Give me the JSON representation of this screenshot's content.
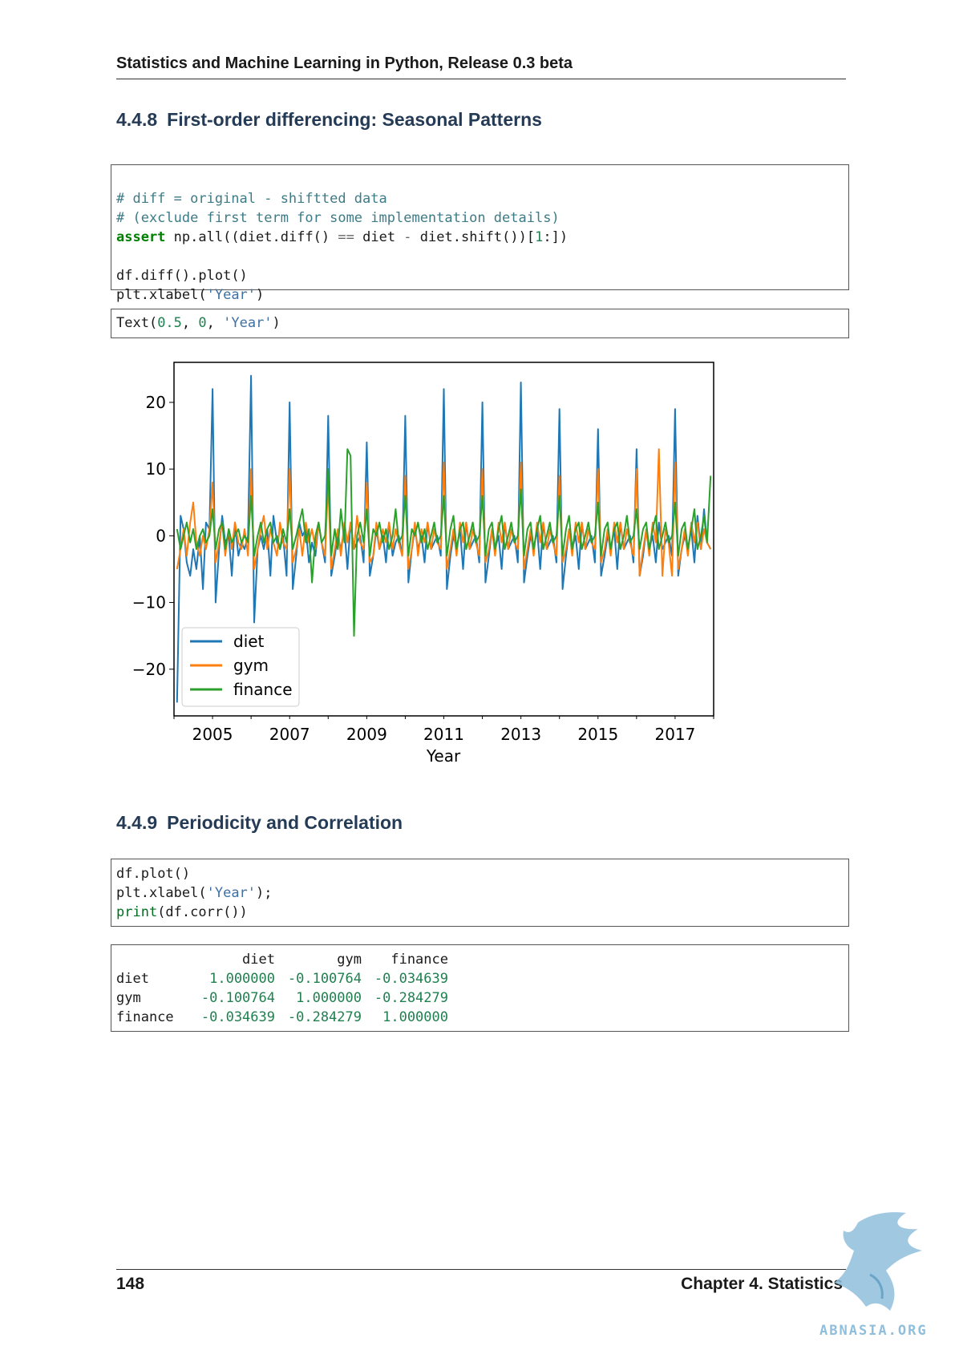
{
  "header": {
    "title": "Statistics and Machine Learning in Python, Release 0.3 beta"
  },
  "section1": {
    "number": "4.4.8",
    "title": "First-order differencing: Seasonal Patterns",
    "code": {
      "l1": "# diff = original - shiftted data",
      "l2": "# (exclude first term for some implementation details)",
      "l3_kw": "assert",
      "l3_a": " np",
      "l3_b": ".all((diet",
      "l3_c": ".diff() ",
      "l3_d": "==",
      "l3_e": " diet ",
      "l3_f": "-",
      "l3_g": " diet",
      "l3_h": ".shift())[",
      "l3_i": "1",
      "l3_j": ":])",
      "l5_a": "df",
      "l5_b": ".diff()",
      "l5_c": ".plot()",
      "l6_a": "plt",
      "l6_b": ".xlabel(",
      "l6_c": "'Year'",
      "l6_d": ")"
    },
    "output": {
      "a": "Text(",
      "b": "0.5",
      "c": ", ",
      "d": "0",
      "e": ", ",
      "f": "'Year'",
      "g": ")"
    }
  },
  "chart_data": {
    "type": "line",
    "title": "",
    "xlabel": "Year",
    "ylabel": "",
    "xlim": [
      2004.0,
      2018.0
    ],
    "ylim": [
      -27,
      26
    ],
    "yticks": [
      20,
      10,
      0,
      -10,
      -20
    ],
    "ytick_labels": [
      "20",
      "10",
      "0",
      "−10",
      "−20"
    ],
    "xticks": [
      2005,
      2007,
      2009,
      2011,
      2013,
      2015,
      2017
    ],
    "xtick_labels": [
      "2005",
      "2007",
      "2009",
      "2011",
      "2013",
      "2015",
      "2017"
    ],
    "legend_position": "lower-left",
    "grid": false,
    "series": [
      {
        "name": "diet",
        "color": "#1f77b4",
        "x": [
          2004.08,
          2004.17,
          2004.25,
          2004.33,
          2004.42,
          2004.5,
          2004.58,
          2004.67,
          2004.75,
          2004.83,
          2004.92,
          2005.0,
          2005.08,
          2005.17,
          2005.25,
          2005.33,
          2005.42,
          2005.5,
          2005.58,
          2005.67,
          2005.75,
          2005.83,
          2005.92,
          2006.0,
          2006.08,
          2006.17,
          2006.25,
          2006.33,
          2006.42,
          2006.5,
          2006.58,
          2006.67,
          2006.75,
          2006.83,
          2006.92,
          2007.0,
          2007.08,
          2007.17,
          2007.25,
          2007.33,
          2007.42,
          2007.5,
          2007.58,
          2007.67,
          2007.75,
          2007.83,
          2007.92,
          2008.0,
          2008.08,
          2008.17,
          2008.25,
          2008.33,
          2008.42,
          2008.5,
          2008.58,
          2008.67,
          2008.75,
          2008.83,
          2008.92,
          2009.0,
          2009.08,
          2009.17,
          2009.25,
          2009.33,
          2009.42,
          2009.5,
          2009.58,
          2009.67,
          2009.75,
          2009.83,
          2009.92,
          2010.0,
          2010.08,
          2010.17,
          2010.25,
          2010.33,
          2010.42,
          2010.5,
          2010.58,
          2010.67,
          2010.75,
          2010.83,
          2010.92,
          2011.0,
          2011.08,
          2011.17,
          2011.25,
          2011.33,
          2011.42,
          2011.5,
          2011.58,
          2011.67,
          2011.75,
          2011.83,
          2011.92,
          2012.0,
          2012.08,
          2012.17,
          2012.25,
          2012.33,
          2012.42,
          2012.5,
          2012.58,
          2012.67,
          2012.75,
          2012.83,
          2012.92,
          2013.0,
          2013.08,
          2013.17,
          2013.25,
          2013.33,
          2013.42,
          2013.5,
          2013.58,
          2013.67,
          2013.75,
          2013.83,
          2013.92,
          2014.0,
          2014.08,
          2014.17,
          2014.25,
          2014.33,
          2014.42,
          2014.5,
          2014.58,
          2014.67,
          2014.75,
          2014.83,
          2014.92,
          2015.0,
          2015.08,
          2015.17,
          2015.25,
          2015.33,
          2015.42,
          2015.5,
          2015.58,
          2015.67,
          2015.75,
          2015.83,
          2015.92,
          2016.0,
          2016.08,
          2016.17,
          2016.25,
          2016.33,
          2016.42,
          2016.5,
          2016.58,
          2016.67,
          2016.75,
          2016.83,
          2016.92,
          2017.0,
          2017.08,
          2017.17,
          2017.25,
          2017.33,
          2017.42,
          2017.5,
          2017.58,
          2017.67,
          2017.75,
          2017.83,
          2017.92
        ],
        "values": [
          -25,
          3,
          1,
          -4,
          -6,
          -2,
          -5,
          0,
          -8,
          2,
          1,
          22,
          -10,
          -2,
          3,
          -1,
          0,
          -6,
          2,
          -3,
          -1,
          -2,
          0,
          24,
          -13,
          -2,
          0,
          -2,
          1,
          -6,
          3,
          -1,
          -2,
          0,
          -6,
          20,
          -8,
          -3,
          2,
          0,
          1,
          -4,
          -1,
          -3,
          2,
          -1,
          -4,
          18,
          -6,
          -3,
          0,
          -2,
          1,
          -5,
          2,
          -2,
          -1,
          0,
          -4,
          14,
          -6,
          -3,
          1,
          -2,
          0,
          -4,
          2,
          -3,
          -1,
          0,
          -3,
          18,
          -7,
          -2,
          1,
          -2,
          0,
          -4,
          2,
          -2,
          -1,
          0,
          -3,
          22,
          -8,
          -3,
          0,
          -2,
          1,
          -5,
          2,
          -2,
          -1,
          0,
          -4,
          20,
          -7,
          -3,
          1,
          -2,
          0,
          -5,
          2,
          -2,
          -1,
          0,
          -4,
          23,
          -7,
          -3,
          0,
          -2,
          1,
          -5,
          2,
          -2,
          -1,
          0,
          -4,
          19,
          -8,
          -3,
          1,
          -2,
          0,
          -5,
          2,
          -2,
          -1,
          0,
          -4,
          16,
          -6,
          -3,
          0,
          -2,
          1,
          -5,
          2,
          -2,
          -1,
          0,
          -4,
          13,
          -6,
          -3,
          1,
          -2,
          0,
          -4,
          2,
          -2,
          -1,
          0,
          -3,
          19,
          -6,
          -2,
          0,
          -2,
          1,
          -4,
          3,
          -2,
          4,
          -1,
          -2
        ]
      },
      {
        "name": "gym",
        "color": "#ff7f0e",
        "x": [
          2004.08,
          2004.17,
          2004.25,
          2004.33,
          2004.42,
          2004.5,
          2004.58,
          2004.67,
          2004.75,
          2004.83,
          2004.92,
          2005.0,
          2005.08,
          2005.17,
          2005.25,
          2005.33,
          2005.42,
          2005.5,
          2005.58,
          2005.67,
          2005.75,
          2005.83,
          2005.92,
          2006.0,
          2006.08,
          2006.17,
          2006.25,
          2006.33,
          2006.42,
          2006.5,
          2006.58,
          2006.67,
          2006.75,
          2006.83,
          2006.92,
          2007.0,
          2007.08,
          2007.17,
          2007.25,
          2007.33,
          2007.42,
          2007.5,
          2007.58,
          2007.67,
          2007.75,
          2007.83,
          2007.92,
          2008.0,
          2008.08,
          2008.17,
          2008.25,
          2008.33,
          2008.42,
          2008.5,
          2008.58,
          2008.67,
          2008.75,
          2008.83,
          2008.92,
          2009.0,
          2009.08,
          2009.17,
          2009.25,
          2009.33,
          2009.42,
          2009.5,
          2009.58,
          2009.67,
          2009.75,
          2009.83,
          2009.92,
          2010.0,
          2010.08,
          2010.17,
          2010.25,
          2010.33,
          2010.42,
          2010.5,
          2010.58,
          2010.67,
          2010.75,
          2010.83,
          2010.92,
          2011.0,
          2011.08,
          2011.17,
          2011.25,
          2011.33,
          2011.42,
          2011.5,
          2011.58,
          2011.67,
          2011.75,
          2011.83,
          2011.92,
          2012.0,
          2012.08,
          2012.17,
          2012.25,
          2012.33,
          2012.42,
          2012.5,
          2012.58,
          2012.67,
          2012.75,
          2012.83,
          2012.92,
          2013.0,
          2013.08,
          2013.17,
          2013.25,
          2013.33,
          2013.42,
          2013.5,
          2013.58,
          2013.67,
          2013.75,
          2013.83,
          2013.92,
          2014.0,
          2014.08,
          2014.17,
          2014.25,
          2014.33,
          2014.42,
          2014.5,
          2014.58,
          2014.67,
          2014.75,
          2014.83,
          2014.92,
          2015.0,
          2015.08,
          2015.17,
          2015.25,
          2015.33,
          2015.42,
          2015.5,
          2015.58,
          2015.67,
          2015.75,
          2015.83,
          2015.92,
          2016.0,
          2016.08,
          2016.17,
          2016.25,
          2016.33,
          2016.42,
          2016.5,
          2016.58,
          2016.67,
          2016.75,
          2016.83,
          2016.92,
          2017.0,
          2017.08,
          2017.17,
          2017.25,
          2017.33,
          2017.42,
          2017.5,
          2017.58,
          2017.67,
          2017.75,
          2017.83,
          2017.92
        ],
        "values": [
          -5,
          -2,
          1,
          -3,
          2,
          5,
          -1,
          -3,
          0,
          -2,
          1,
          8,
          -4,
          -1,
          2,
          -3,
          1,
          -2,
          2,
          -1,
          -2,
          1,
          -3,
          10,
          -5,
          -2,
          1,
          3,
          -2,
          1,
          -1,
          -3,
          2,
          -1,
          -2,
          10,
          -4,
          -2,
          1,
          -3,
          2,
          -1,
          1,
          -2,
          2,
          -1,
          -3,
          8,
          -5,
          -2,
          1,
          -3,
          2,
          -1,
          2,
          -2,
          3,
          -1,
          -2,
          8,
          -4,
          -3,
          2,
          -2,
          1,
          -1,
          2,
          -2,
          1,
          -1,
          -3,
          9,
          -5,
          -2,
          2,
          -3,
          1,
          -1,
          2,
          -2,
          1,
          -1,
          -2,
          11,
          -5,
          -2,
          1,
          -3,
          2,
          -1,
          2,
          -2,
          1,
          -1,
          -3,
          10,
          -4,
          -2,
          1,
          -3,
          2,
          -1,
          2,
          -2,
          1,
          -1,
          -2,
          11,
          -5,
          -2,
          1,
          -3,
          2,
          -1,
          2,
          -2,
          1,
          -1,
          -3,
          9,
          -4,
          -2,
          1,
          -3,
          2,
          -1,
          2,
          -2,
          1,
          -1,
          -2,
          10,
          -4,
          -2,
          1,
          -3,
          2,
          -1,
          2,
          -2,
          1,
          -1,
          -3,
          10,
          -6,
          -2,
          1,
          -3,
          2,
          -1,
          13,
          -6,
          1,
          -1,
          -6,
          11,
          -5,
          -2,
          1,
          -3,
          2,
          -1,
          2,
          -2,
          1,
          -1,
          -2
        ]
      },
      {
        "name": "finance",
        "color": "#2ca02c",
        "x": [
          2004.08,
          2004.17,
          2004.25,
          2004.33,
          2004.42,
          2004.5,
          2004.58,
          2004.67,
          2004.75,
          2004.83,
          2004.92,
          2005.0,
          2005.08,
          2005.17,
          2005.25,
          2005.33,
          2005.42,
          2005.5,
          2005.58,
          2005.67,
          2005.75,
          2005.83,
          2005.92,
          2006.0,
          2006.08,
          2006.17,
          2006.25,
          2006.33,
          2006.42,
          2006.5,
          2006.58,
          2006.67,
          2006.75,
          2006.83,
          2006.92,
          2007.0,
          2007.08,
          2007.17,
          2007.25,
          2007.33,
          2007.42,
          2007.5,
          2007.58,
          2007.67,
          2007.75,
          2007.83,
          2007.92,
          2008.0,
          2008.08,
          2008.17,
          2008.25,
          2008.33,
          2008.42,
          2008.5,
          2008.58,
          2008.67,
          2008.75,
          2008.83,
          2008.92,
          2009.0,
          2009.08,
          2009.17,
          2009.25,
          2009.33,
          2009.42,
          2009.5,
          2009.58,
          2009.67,
          2009.75,
          2009.83,
          2009.92,
          2010.0,
          2010.08,
          2010.17,
          2010.25,
          2010.33,
          2010.42,
          2010.5,
          2010.58,
          2010.67,
          2010.75,
          2010.83,
          2010.92,
          2011.0,
          2011.08,
          2011.17,
          2011.25,
          2011.33,
          2011.42,
          2011.5,
          2011.58,
          2011.67,
          2011.75,
          2011.83,
          2011.92,
          2012.0,
          2012.08,
          2012.17,
          2012.25,
          2012.33,
          2012.42,
          2012.5,
          2012.58,
          2012.67,
          2012.75,
          2012.83,
          2012.92,
          2013.0,
          2013.08,
          2013.17,
          2013.25,
          2013.33,
          2013.42,
          2013.5,
          2013.58,
          2013.67,
          2013.75,
          2013.83,
          2013.92,
          2014.0,
          2014.08,
          2014.17,
          2014.25,
          2014.33,
          2014.42,
          2014.5,
          2014.58,
          2014.67,
          2014.75,
          2014.83,
          2014.92,
          2015.0,
          2015.08,
          2015.17,
          2015.25,
          2015.33,
          2015.42,
          2015.5,
          2015.58,
          2015.67,
          2015.75,
          2015.83,
          2015.92,
          2016.0,
          2016.08,
          2016.17,
          2016.25,
          2016.33,
          2016.42,
          2016.5,
          2016.58,
          2016.67,
          2016.75,
          2016.83,
          2016.92,
          2017.0,
          2017.08,
          2017.17,
          2017.25,
          2017.33,
          2017.42,
          2017.5,
          2017.58,
          2017.67,
          2017.75,
          2017.83,
          2017.92
        ],
        "values": [
          1,
          -2,
          0,
          2,
          -1,
          1,
          -2,
          0,
          1,
          -1,
          0,
          4,
          -2,
          1,
          2,
          -2,
          1,
          -1,
          0,
          1,
          -1,
          0,
          -1,
          6,
          -3,
          0,
          2,
          -1,
          1,
          2,
          -1,
          0,
          -2,
          1,
          -1,
          4,
          -2,
          0,
          2,
          4,
          -1,
          1,
          -7,
          0,
          2,
          -1,
          0,
          10,
          -3,
          1,
          -2,
          4,
          -1,
          13,
          12,
          -15,
          0,
          2,
          -1,
          4,
          -3,
          1,
          0,
          2,
          -1,
          1,
          -2,
          0,
          4,
          -1,
          0,
          6,
          -3,
          1,
          0,
          2,
          -1,
          1,
          -2,
          0,
          2,
          -1,
          0,
          6,
          -3,
          1,
          3,
          -2,
          1,
          2,
          -2,
          0,
          2,
          -1,
          0,
          6,
          -3,
          1,
          2,
          -2,
          1,
          3,
          -2,
          0,
          2,
          -1,
          0,
          7,
          -3,
          1,
          2,
          -2,
          1,
          3,
          -2,
          0,
          2,
          -1,
          0,
          6,
          -3,
          1,
          3,
          -2,
          1,
          2,
          -2,
          0,
          2,
          -1,
          0,
          5,
          -3,
          1,
          2,
          -2,
          1,
          2,
          -2,
          0,
          3,
          -1,
          0,
          4,
          -2,
          1,
          2,
          -2,
          1,
          3,
          -2,
          0,
          2,
          -1,
          0,
          5,
          -3,
          1,
          2,
          -2,
          1,
          4,
          -2,
          0,
          3,
          -1,
          9
        ]
      }
    ]
  },
  "section2": {
    "number": "4.4.9",
    "title": "Periodicity and Correlation",
    "code": {
      "l1_a": "df",
      "l1_b": ".plot()",
      "l2_a": "plt",
      "l2_b": ".xlabel(",
      "l2_c": "'Year'",
      "l2_d": ");",
      "l3_a": "print",
      "l3_b": "(df",
      "l3_c": ".corr())"
    },
    "corr_table": {
      "columns": [
        "diet",
        "gym",
        "finance"
      ],
      "rows": [
        {
          "label": "diet",
          "values": [
            "1.000000",
            "-0.100764",
            "-0.034639"
          ]
        },
        {
          "label": "gym",
          "values": [
            "-0.100764",
            "1.000000",
            "-0.284279"
          ]
        },
        {
          "label": "finance",
          "values": [
            "-0.034639",
            "-0.284279",
            "1.000000"
          ]
        }
      ]
    }
  },
  "footer": {
    "page_number": "148",
    "chapter": "Chapter 4.  Statistics"
  },
  "watermark": {
    "text": "ABNASIA.ORG",
    "color": "#8fbfdc"
  }
}
